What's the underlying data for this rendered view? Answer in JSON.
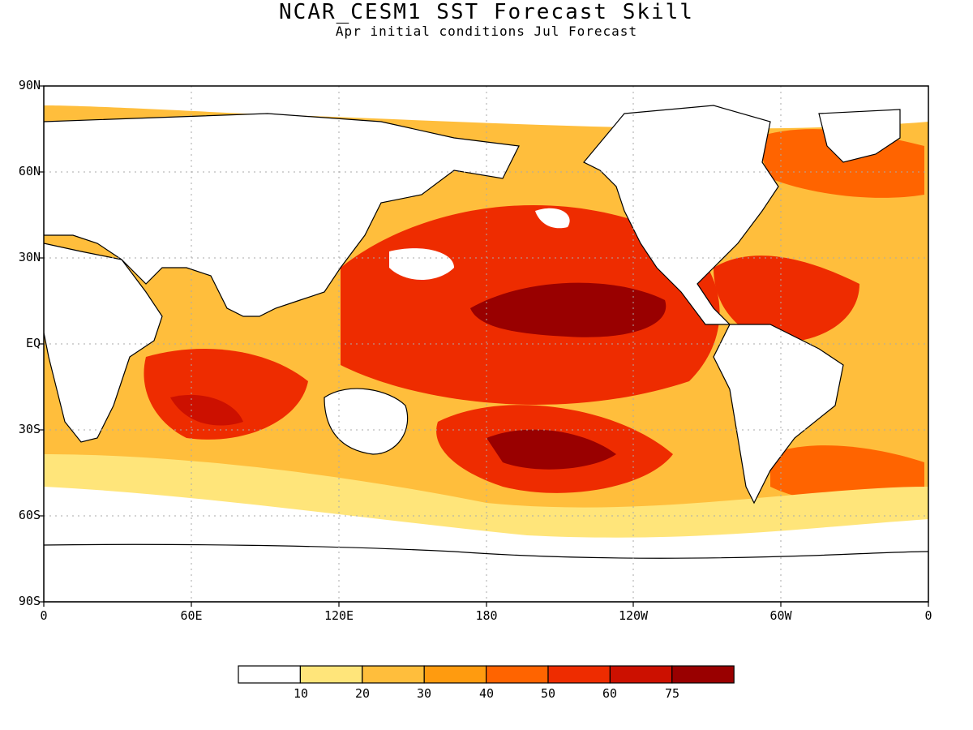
{
  "title": "NCAR_CESM1 SST Forecast Skill",
  "subtitle": "Apr initial conditions  Jul Forecast",
  "lat_labels": [
    "90N",
    "60N",
    "30N",
    "EQ",
    "30S",
    "60S",
    "90S"
  ],
  "lon_labels": [
    "0",
    "60E",
    "120E",
    "180",
    "120W",
    "60W",
    "0"
  ],
  "colorbar": {
    "labels": [
      "10",
      "20",
      "30",
      "40",
      "50",
      "60",
      "75"
    ],
    "colors": [
      "#ffffff",
      "#ffe57a",
      "#ffbe3c",
      "#ff9b0f",
      "#ff6400",
      "#ee2c00",
      "#cc1000",
      "#990000"
    ]
  },
  "colors": {
    "land": "#ffffff",
    "coast": "#000000",
    "grid": "#aaaaaa"
  }
}
